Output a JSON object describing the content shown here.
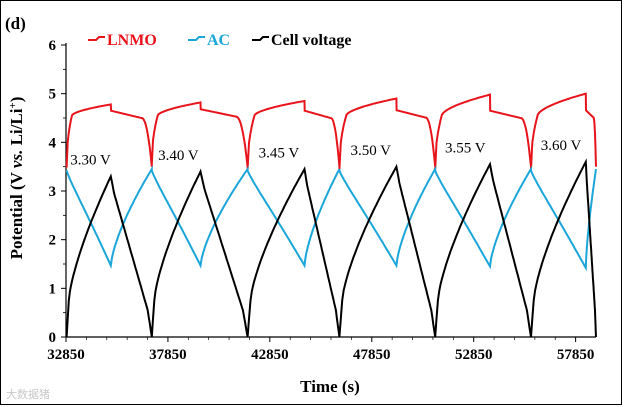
{
  "panel_label": "(d)",
  "watermark": "大数据猪",
  "chart_data": {
    "type": "line",
    "title": "",
    "xlabel": "Time (s)",
    "ylabel_parts": {
      "pre": "Potential (V ",
      "vs": "vs.",
      "mid": " Li/Li",
      "sup": "+",
      "post": ")"
    },
    "xlim": [
      32850,
      58850
    ],
    "ylim": [
      0,
      6
    ],
    "xticks": [
      32850,
      37850,
      42850,
      47850,
      52850,
      57850
    ],
    "yticks": [
      0,
      1,
      2,
      3,
      4,
      5,
      6
    ],
    "legend": [
      {
        "name": "LNMO",
        "color": "#e8141b"
      },
      {
        "name": "AC",
        "color": "#1aa6d8"
      },
      {
        "name": "Cell voltage",
        "color": "#000000"
      }
    ],
    "cycles": [
      {
        "start": 32880,
        "peak": 35050,
        "end": 37060,
        "cell_max": 3.3,
        "label": "3.30 V",
        "lnmo_start": 3.48,
        "lnmo_knee": 4.55,
        "lnmo_top": 4.78,
        "lnmo_drop": 4.65,
        "ac_min": 1.47
      },
      {
        "start": 37060,
        "peak": 39450,
        "end": 41760,
        "cell_max": 3.4,
        "label": "3.40 V",
        "lnmo_start": 3.55,
        "lnmo_knee": 4.55,
        "lnmo_top": 4.82,
        "lnmo_drop": 4.68,
        "ac_min": 1.47
      },
      {
        "start": 41760,
        "peak": 44550,
        "end": 46260,
        "cell_max": 3.45,
        "label": "3.45 V",
        "lnmo_start": 3.45,
        "lnmo_knee": 4.55,
        "lnmo_top": 4.85,
        "lnmo_drop": 4.65,
        "ac_min": 1.47
      },
      {
        "start": 46260,
        "peak": 49060,
        "end": 50960,
        "cell_max": 3.5,
        "label": "3.50 V",
        "lnmo_start": 3.45,
        "lnmo_knee": 4.55,
        "lnmo_top": 4.9,
        "lnmo_drop": 4.66,
        "ac_min": 1.47
      },
      {
        "start": 50960,
        "peak": 53650,
        "end": 55660,
        "cell_max": 3.55,
        "label": "3.55 V",
        "lnmo_start": 3.45,
        "lnmo_knee": 4.55,
        "lnmo_top": 4.98,
        "lnmo_drop": 4.65,
        "ac_min": 1.45
      },
      {
        "start": 55660,
        "peak": 58350,
        "end": 58850,
        "cell_max": 3.6,
        "label": "3.60 V",
        "lnmo_start": 3.45,
        "lnmo_knee": 4.55,
        "lnmo_top": 5.0,
        "lnmo_drop": 4.66,
        "ac_min": 1.42
      }
    ]
  }
}
